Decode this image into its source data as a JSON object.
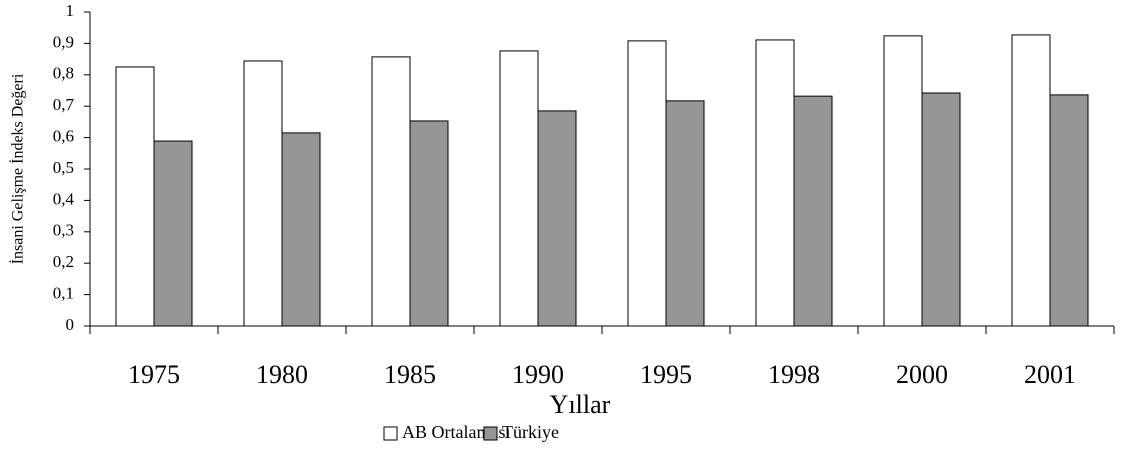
{
  "chart_data": {
    "type": "bar",
    "x_label": "Yıllar",
    "y_label": "İnsani Gelişme İndeks Değeri",
    "categories": [
      "1975",
      "1980",
      "1985",
      "1990",
      "1995",
      "1998",
      "2000",
      "2001"
    ],
    "series": [
      {
        "name": "AB Ortalaması",
        "color": "#ffffff",
        "values": [
          0.825,
          0.844,
          0.857,
          0.876,
          0.908,
          0.911,
          0.924,
          0.927
        ]
      },
      {
        "name": "Türkiye",
        "color": "#969696",
        "values": [
          0.589,
          0.615,
          0.653,
          0.685,
          0.717,
          0.732,
          0.742,
          0.736
        ]
      }
    ],
    "ylim": [
      0,
      1
    ],
    "yticks": [
      0,
      {
        "value": 0.1,
        "label": "0,1"
      },
      {
        "value": 0.2,
        "label": "0,2"
      },
      {
        "value": 0.3,
        "label": "0,3"
      },
      {
        "value": 0.4,
        "label": "0,4"
      },
      {
        "value": 0.5,
        "label": "0,5"
      },
      {
        "value": 0.6,
        "label": "0,6"
      },
      {
        "value": 0.7,
        "label": "0,7"
      },
      {
        "value": 0.8,
        "label": "0,8"
      },
      {
        "value": 0.9,
        "label": "0,9"
      },
      1
    ],
    "grid": false,
    "legend": "bottom"
  }
}
